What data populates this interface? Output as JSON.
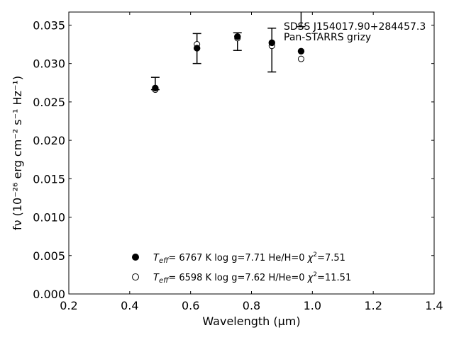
{
  "chart_data": {
    "type": "scatter",
    "xlabel": "Wavelength (μm)",
    "ylabel": "fν (10⁻²⁶ erg cm⁻² s⁻¹ Hz⁻¹)",
    "xlim": [
      0.2,
      1.4
    ],
    "ylim": [
      0.0,
      0.0367
    ],
    "xticks": [
      "0.2",
      "0.4",
      "0.6",
      "0.8",
      "1.0",
      "1.2",
      "1.4"
    ],
    "yticks": [
      "0.000",
      "0.005",
      "0.010",
      "0.015",
      "0.020",
      "0.025",
      "0.030",
      "0.035"
    ],
    "grid": false,
    "annotation": {
      "line1": "SDSS J154017.90+284457.3",
      "line2": "Pan-STARRS grizy"
    },
    "observed": {
      "x": [
        0.484,
        0.621,
        0.754,
        0.867,
        0.963
      ],
      "y": [
        0.0267,
        0.032,
        0.0334,
        0.0327,
        0.0316
      ],
      "yerr_low": [
        0.0266,
        0.03,
        0.0317,
        0.0289,
        0.0348
      ],
      "yerr_high": [
        0.0282,
        0.0339,
        0.034,
        0.0346,
        0.0367
      ],
      "cap_low": [
        true,
        true,
        true,
        true,
        true
      ],
      "cap_high": [
        true,
        true,
        true,
        true,
        false
      ]
    },
    "series": [
      {
        "marker": "filled",
        "x": [
          0.484,
          0.621,
          0.754,
          0.867,
          0.963
        ],
        "y": [
          0.0268,
          0.032,
          0.0335,
          0.0327,
          0.0316
        ],
        "label": {
          "teff": "6767 K",
          "logg": "log g=7.71",
          "comp": "He/H=0",
          "chi2": "=7.51"
        }
      },
      {
        "marker": "open",
        "x": [
          0.484,
          0.621,
          0.754,
          0.867,
          0.963
        ],
        "y": [
          0.0266,
          0.0325,
          0.0333,
          0.0323,
          0.0306
        ],
        "label": {
          "teff": "6598 K",
          "logg": "log g=7.62",
          "comp": "H/He=0",
          "chi2": "=11.51"
        }
      }
    ]
  }
}
